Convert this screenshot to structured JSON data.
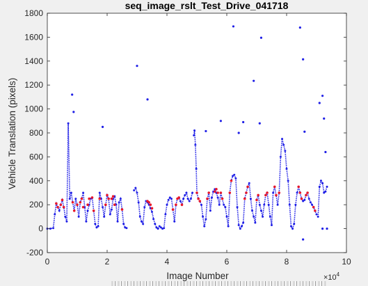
{
  "chart_data": {
    "type": "scatter",
    "title": "seq_image_rslt_Test_Drive_041718",
    "xlabel": "Image Number",
    "ylabel": "Vehicle Translation (pixels)",
    "x_exponent_label": "×10",
    "x_exponent_power": "4",
    "x_scale": 10000,
    "xlim": [
      0,
      10
    ],
    "ylim": [
      -200,
      1800
    ],
    "xticks": [
      0,
      2,
      4,
      6,
      8,
      10
    ],
    "yticks": [
      -200,
      0,
      200,
      400,
      600,
      800,
      1000,
      1200,
      1400,
      1600,
      1800
    ],
    "grid": false,
    "colors": {
      "primary": "#1f1fe6",
      "smoothed": "#e8172a",
      "axes_bg": "#ffffff",
      "figure_bg": "#f0f0f0"
    },
    "series": [
      {
        "color": "#1f1fe6",
        "marker": "dot",
        "segments": [
          {
            "x": [
              0.0,
              0.1,
              0.2,
              0.25,
              0.3,
              0.35,
              0.4,
              0.45,
              0.5,
              0.55,
              0.6,
              0.65,
              0.7,
              0.75,
              0.8,
              0.85,
              0.9,
              0.95,
              1.0,
              1.05,
              1.1,
              1.15,
              1.2,
              1.25,
              1.3,
              1.35,
              1.4,
              1.45,
              1.5,
              1.55,
              1.6,
              1.65,
              1.7,
              1.75,
              1.8,
              1.85,
              1.9,
              1.95,
              2.0,
              2.05,
              2.1,
              2.15,
              2.2,
              2.25,
              2.3,
              2.35,
              2.4,
              2.45,
              2.5,
              2.55,
              2.6,
              2.65
            ],
            "y": [
              0,
              0,
              5,
              120,
              210,
              180,
              150,
              200,
              240,
              180,
              100,
              60,
              880,
              250,
              300,
              220,
              150,
              250,
              200,
              100,
              220,
              250,
              300,
              180,
              60,
              150,
              200,
              250,
              260,
              150,
              40,
              10,
              20,
              300,
              250,
              180,
              100,
              200,
              280,
              250,
              120,
              160,
              250,
              270,
              200,
              60,
              220,
              250,
              160,
              40,
              10,
              5
            ]
          },
          {
            "x": [
              2.9,
              2.95,
              3.0,
              3.05,
              3.1,
              3.15,
              3.2,
              3.25,
              3.3,
              3.35,
              3.4,
              3.45,
              3.5,
              3.55,
              3.6,
              3.65,
              3.7,
              3.75,
              3.8,
              3.85,
              3.9,
              3.95,
              4.0,
              4.05,
              4.1,
              4.15,
              4.2,
              4.25,
              4.3,
              4.35,
              4.4,
              4.45,
              4.5,
              4.55,
              4.6,
              4.65,
              4.7,
              4.75,
              4.8,
              4.85
            ],
            "y": [
              320,
              340,
              300,
              220,
              100,
              60,
              40,
              180,
              230,
              220,
              200,
              170,
              140,
              80,
              40,
              10,
              0,
              20,
              10,
              0,
              5,
              120,
              200,
              240,
              260,
              250,
              160,
              60,
              200,
              250,
              260,
              230,
              200,
              250,
              280,
              300,
              250,
              230,
              250,
              300
            ]
          },
          {
            "x": [
              4.9,
              4.92,
              4.95,
              4.98,
              5.0,
              5.05,
              5.1,
              5.15,
              5.2,
              5.25,
              5.3,
              5.35,
              5.4,
              5.45,
              5.5,
              5.55,
              5.6,
              5.65,
              5.7,
              5.75,
              5.8,
              5.85,
              5.9,
              5.95,
              6.0,
              6.05,
              6.1,
              6.15,
              6.2,
              6.25,
              6.3,
              6.35,
              6.4,
              6.45,
              6.5,
              6.55,
              6.6,
              6.65,
              6.7,
              6.75,
              6.8,
              6.85,
              6.9,
              6.95,
              7.0,
              7.05,
              7.1,
              7.15,
              7.2,
              7.25,
              7.3,
              7.35,
              7.4,
              7.45,
              7.5,
              7.55,
              7.6,
              7.65,
              7.7,
              7.75,
              7.8,
              7.85,
              7.9,
              7.95,
              8.0,
              8.05,
              8.1,
              8.15,
              8.2,
              8.25,
              8.3,
              8.35,
              8.4,
              8.45,
              8.5,
              8.55,
              8.6,
              8.65,
              8.7,
              8.75,
              8.8,
              8.85,
              8.9,
              8.95,
              9.0
            ],
            "y": [
              780,
              820,
              700,
              500,
              300,
              250,
              230,
              200,
              100,
              20,
              80,
              250,
              300,
              150,
              260,
              310,
              330,
              300,
              260,
              200,
              300,
              250,
              200,
              180,
              100,
              20,
              300,
              400,
              440,
              450,
              420,
              180,
              30,
              0,
              20,
              50,
              250,
              300,
              350,
              380,
              250,
              150,
              100,
              50,
              240,
              280,
              200,
              150,
              100,
              200,
              280,
              300,
              200,
              100,
              30,
              300,
              350,
              280,
              200,
              300,
              600,
              750,
              700,
              650,
              500,
              400,
              200,
              20,
              0,
              40,
              200,
              300,
              350,
              300,
              250,
              230,
              240,
              280,
              300,
              250,
              220,
              200,
              180,
              150,
              120
            ]
          },
          {
            "x": [
              9.05,
              9.1,
              9.15,
              9.2,
              9.25,
              9.3,
              9.35
            ],
            "y": [
              100,
              350,
              400,
              380,
              300,
              310,
              350
            ]
          }
        ],
        "outliers": {
          "x": [
            0.83,
            0.88,
            1.85,
            3.0,
            3.35,
            5.3,
            5.8,
            6.22,
            6.4,
            6.55,
            6.9,
            7.1,
            7.15,
            8.45,
            8.55,
            8.6,
            9.1,
            9.2,
            9.25,
            9.3,
            8.55,
            9.2,
            9.35
          ],
          "y": [
            1120,
            975,
            850,
            1360,
            1080,
            815,
            900,
            1690,
            800,
            890,
            1235,
            880,
            1595,
            1680,
            1415,
            810,
            1050,
            1110,
            920,
            640,
            -90,
            0,
            0
          ]
        }
      },
      {
        "color": "#e8172a",
        "marker": "dot",
        "points": {
          "x": [
            0.3,
            0.35,
            0.45,
            0.5,
            0.55,
            0.85,
            0.9,
            1.0,
            1.1,
            1.15,
            1.2,
            1.35,
            1.4,
            1.5,
            1.55,
            1.75,
            1.95,
            2.0,
            2.05,
            2.15,
            2.2,
            2.25,
            2.5,
            3.35,
            3.4,
            3.45,
            3.5,
            4.2,
            4.3,
            4.35,
            4.4,
            4.5,
            5.0,
            5.05,
            5.1,
            5.35,
            5.4,
            5.6,
            5.65,
            5.7,
            5.8,
            5.85,
            6.1,
            6.15,
            6.6,
            6.65,
            6.7,
            7.0,
            7.05,
            7.3,
            7.35,
            7.6,
            7.65,
            7.75,
            8.4,
            8.45,
            8.5,
            8.65,
            8.7,
            8.9,
            8.95
          ],
          "y": [
            210,
            180,
            200,
            240,
            180,
            220,
            150,
            200,
            220,
            250,
            180,
            200,
            250,
            260,
            150,
            250,
            200,
            280,
            250,
            250,
            270,
            200,
            160,
            230,
            220,
            200,
            170,
            160,
            200,
            250,
            260,
            200,
            300,
            250,
            230,
            250,
            300,
            310,
            330,
            300,
            300,
            250,
            300,
            400,
            250,
            300,
            350,
            240,
            280,
            280,
            300,
            350,
            280,
            300,
            350,
            300,
            250,
            280,
            300,
            180,
            150
          ]
        }
      }
    ]
  }
}
